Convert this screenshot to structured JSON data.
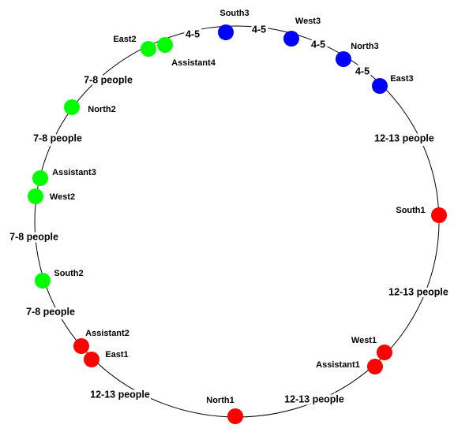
{
  "nodes": [
    {
      "label": "South3",
      "color": "#0000ff"
    },
    {
      "label": "West3",
      "color": "#0000ff"
    },
    {
      "label": "North3",
      "color": "#0000ff"
    },
    {
      "label": "East3",
      "color": "#0000ff"
    },
    {
      "label": "South1",
      "color": "#ff0000"
    },
    {
      "label": "West1",
      "color": "#ff0000"
    },
    {
      "label": "Assistant1",
      "color": "#ff0000"
    },
    {
      "label": "North1",
      "color": "#ff0000"
    },
    {
      "label": "East1",
      "color": "#ff0000"
    },
    {
      "label": "Assistant2",
      "color": "#ff0000"
    },
    {
      "label": "South2",
      "color": "#00ff00"
    },
    {
      "label": "West2",
      "color": "#00ff00"
    },
    {
      "label": "Assistant3",
      "color": "#00ff00"
    },
    {
      "label": "North2",
      "color": "#00ff00"
    },
    {
      "label": "East2",
      "color": "#00ff00"
    },
    {
      "label": "Assistant4",
      "color": "#00ff00"
    }
  ],
  "gaps": [
    "4-5",
    "4-5",
    "4-5",
    "4-5",
    "12-13 people",
    "12-13 people",
    "12-13 people",
    "12-13 people",
    "7-8 people",
    "7-8 people",
    "7-8 people",
    "7-8 people"
  ]
}
